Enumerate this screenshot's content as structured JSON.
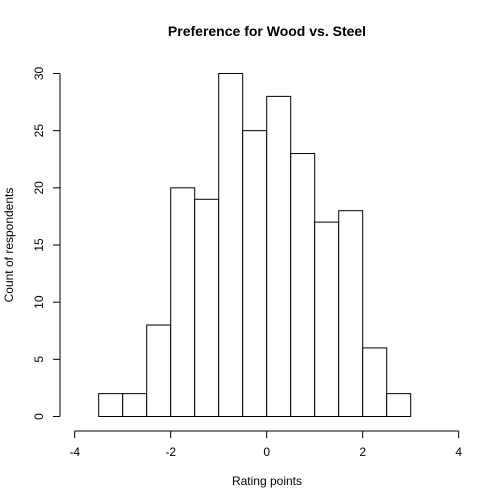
{
  "chart_data": {
    "type": "bar",
    "title": "Preference for Wood vs. Steel",
    "xlabel": "Rating points",
    "ylabel": "Count of respondents",
    "xlim": [
      -4,
      4
    ],
    "ylim": [
      0,
      30
    ],
    "x_ticks": [
      -4,
      -2,
      0,
      2,
      4
    ],
    "y_ticks": [
      0,
      5,
      10,
      15,
      20,
      25,
      30
    ],
    "bin_width": 0.5,
    "bins": [
      {
        "start": -3.5,
        "end": -3.0,
        "count": 2
      },
      {
        "start": -3.0,
        "end": -2.5,
        "count": 2
      },
      {
        "start": -2.5,
        "end": -2.0,
        "count": 8
      },
      {
        "start": -2.0,
        "end": -1.5,
        "count": 20
      },
      {
        "start": -1.5,
        "end": -1.0,
        "count": 19
      },
      {
        "start": -1.0,
        "end": -0.5,
        "count": 30
      },
      {
        "start": -0.5,
        "end": 0.0,
        "count": 25
      },
      {
        "start": 0.0,
        "end": 0.5,
        "count": 28
      },
      {
        "start": 0.5,
        "end": 1.0,
        "count": 23
      },
      {
        "start": 1.0,
        "end": 1.5,
        "count": 17
      },
      {
        "start": 1.5,
        "end": 2.0,
        "count": 18
      },
      {
        "start": 2.0,
        "end": 2.5,
        "count": 6
      },
      {
        "start": 2.5,
        "end": 3.0,
        "count": 2
      }
    ],
    "grid": false,
    "legend": "none"
  }
}
